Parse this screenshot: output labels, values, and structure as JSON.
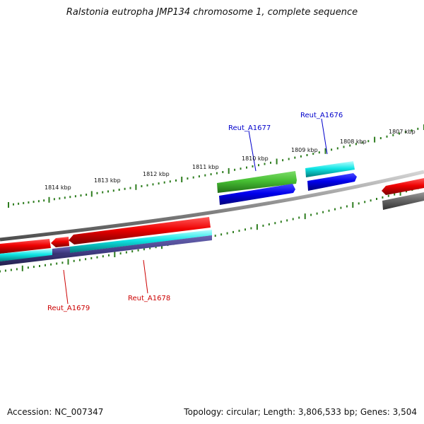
{
  "title": "Ralstonia eutropha JMP134 chromosome 1, complete sequence",
  "footer": {
    "accession_label": "Accession:",
    "accession": "NC_007347",
    "topology_label": "Topology:",
    "topology": "circular",
    "length_label": "Length:",
    "length": "3,806,533 bp",
    "genes_label": "Genes:",
    "genes": "3,504"
  },
  "ruler_labels": [
    "1814 kbp",
    "1813 kbp",
    "1812 kbp",
    "1811 kbp",
    "1810 kbp",
    "1809 kbp",
    "1808 kbp",
    "1807 kbp"
  ],
  "gene_labels": {
    "top": [
      "Reut_A1677",
      "Reut_A1676"
    ],
    "bottom": [
      "Reut_A1679",
      "Reut_A1678"
    ]
  },
  "colors": {
    "backbone": "#8c8c8c",
    "ruler_tick": "#2e7d1f",
    "forward_gene": "#44bb33",
    "forward_gene_dark": "#1f5e16",
    "forward_cds": "#0000ee",
    "forward_cds_dark": "#000088",
    "reverse_gene": "#ee0000",
    "reverse_gene_dark": "#880000",
    "reverse_cds": "#00dddd",
    "reverse_cds_dark": "#008888",
    "reverse_other": "#443f88",
    "pseudo": "#666666",
    "label_forward": "#0000cc",
    "label_reverse": "#cc0000"
  }
}
